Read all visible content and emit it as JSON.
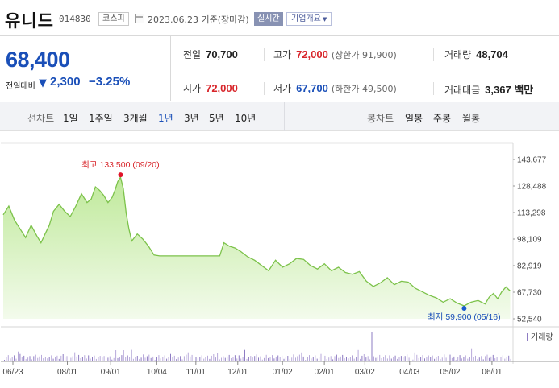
{
  "stock": {
    "name": "유니드",
    "code": "014830",
    "market": "코스피",
    "date": "2023.06.23 기준(장마감)",
    "realtime": "실시간",
    "overview": "기업개요",
    "price": "68,400",
    "change_label": "전일대비",
    "change_arrow": "▼",
    "change": "2,300",
    "change_pct": "−3.25%"
  },
  "stats": {
    "prev_close": {
      "label": "전일",
      "value": "70,700"
    },
    "open": {
      "label": "시가",
      "value": "72,000"
    },
    "high": {
      "label": "고가",
      "value": "72,000",
      "sub": "(상한가 91,900)"
    },
    "low": {
      "label": "저가",
      "value": "67,700",
      "sub": "(하한가 49,500)"
    },
    "volume": {
      "label": "거래량",
      "value": "48,704"
    },
    "amount": {
      "label": "거래대금",
      "value": "3,367 백만"
    }
  },
  "periods": {
    "line_label": "선차트",
    "line_options": [
      "1일",
      "1주일",
      "3개월",
      "1년",
      "3년",
      "5년",
      "10년"
    ],
    "active": "1년",
    "candle_label": "봉차트",
    "candle_options": [
      "일봉",
      "주봉",
      "월봉"
    ]
  },
  "chart_data": {
    "type": "area",
    "y_ticks": [
      "143,677",
      "128,488",
      "113,298",
      "98,109",
      "82,919",
      "67,730",
      "52,540"
    ],
    "ylim": [
      52540,
      143677
    ],
    "x_tick_labels": [
      "06/23",
      "08/01",
      "09/01",
      "10/04",
      "11/01",
      "12/01",
      "01/02",
      "02/01",
      "03/02",
      "04/03",
      "05/02",
      "06/01"
    ],
    "x_tick_days": [
      0,
      39,
      70,
      103,
      131,
      161,
      193,
      223,
      252,
      284,
      313,
      343
    ],
    "total_days": 365,
    "series": [
      {
        "dates": [
          0,
          4,
          8,
          12,
          16,
          20,
          24,
          27,
          30,
          33,
          36,
          40,
          44,
          48,
          52,
          56,
          60,
          63,
          66,
          69,
          72,
          75,
          78,
          80,
          82,
          84,
          86,
          88,
          90,
          92,
          96,
          100,
          104,
          108,
          112,
          116,
          120,
          125,
          130,
          135,
          140,
          145,
          150,
          155,
          158,
          162,
          166,
          170,
          175,
          180,
          185,
          190,
          195,
          200,
          205,
          210,
          215,
          220,
          225,
          230,
          235,
          240,
          245,
          250,
          255,
          260,
          265,
          270,
          275,
          280,
          285,
          290,
          295,
          300,
          305,
          310,
          315,
          320,
          325,
          330,
          335,
          340,
          345,
          348,
          351,
          354,
          357,
          360,
          363
        ],
        "values": [
          112000,
          117000,
          109000,
          104000,
          99000,
          106000,
          100000,
          96000,
          101000,
          106000,
          114000,
          118000,
          114000,
          111000,
          117000,
          124000,
          119000,
          121000,
          128000,
          126000,
          123000,
          119000,
          122000,
          126000,
          131000,
          133500,
          127000,
          113000,
          104000,
          97000,
          101000,
          98000,
          94000,
          89000,
          88500,
          88500,
          88500,
          88500,
          88500,
          88500,
          88500,
          88500,
          88500,
          88500,
          96000,
          94000,
          93000,
          91000,
          88000,
          86000,
          83000,
          80000,
          86000,
          82000,
          84000,
          87000,
          86500,
          83000,
          81000,
          84000,
          80000,
          82000,
          79000,
          78000,
          79500,
          74000,
          71000,
          73000,
          76000,
          72000,
          74000,
          73500,
          70000,
          68000,
          66000,
          64500,
          62000,
          64000,
          61500,
          59900,
          62000,
          63000,
          61000,
          65000,
          67000,
          64000,
          68000,
          70700,
          68400
        ]
      }
    ],
    "max_annotation": "최고 133,500 (09/20)",
    "min_annotation": "최저 59,900 (05/16)",
    "volume_legend": "거래량",
    "up_color": "#d8262b",
    "down_color": "#1a4fb8",
    "line_color": "#7cc24a"
  }
}
